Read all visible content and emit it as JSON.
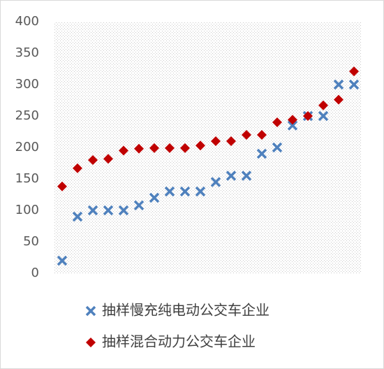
{
  "chart_data": {
    "type": "scatter",
    "categories": [
      null,
      null,
      null,
      null,
      null,
      null,
      null,
      null,
      null,
      null,
      null,
      null,
      null,
      null,
      null,
      null,
      null,
      null,
      null,
      null
    ],
    "series": [
      {
        "name": "抽样慢充纯电动公交车企业",
        "color": "#4f81bd",
        "marker": "x",
        "values": [
          20,
          90,
          100,
          100,
          100,
          108,
          120,
          130,
          130,
          130,
          145,
          155,
          155,
          190,
          200,
          235,
          250,
          250,
          300,
          300
        ]
      },
      {
        "name": "抽样混合动力公交车企业",
        "color": "#c00000",
        "marker": "diamond",
        "values": [
          138,
          167,
          180,
          182,
          195,
          198,
          199,
          199,
          199,
          203,
          210,
          210,
          220,
          220,
          240,
          244,
          250,
          267,
          276,
          321
        ]
      }
    ],
    "ylim": [
      0,
      400
    ],
    "yticks": [
      0,
      50,
      100,
      150,
      200,
      250,
      300,
      350,
      400
    ]
  }
}
